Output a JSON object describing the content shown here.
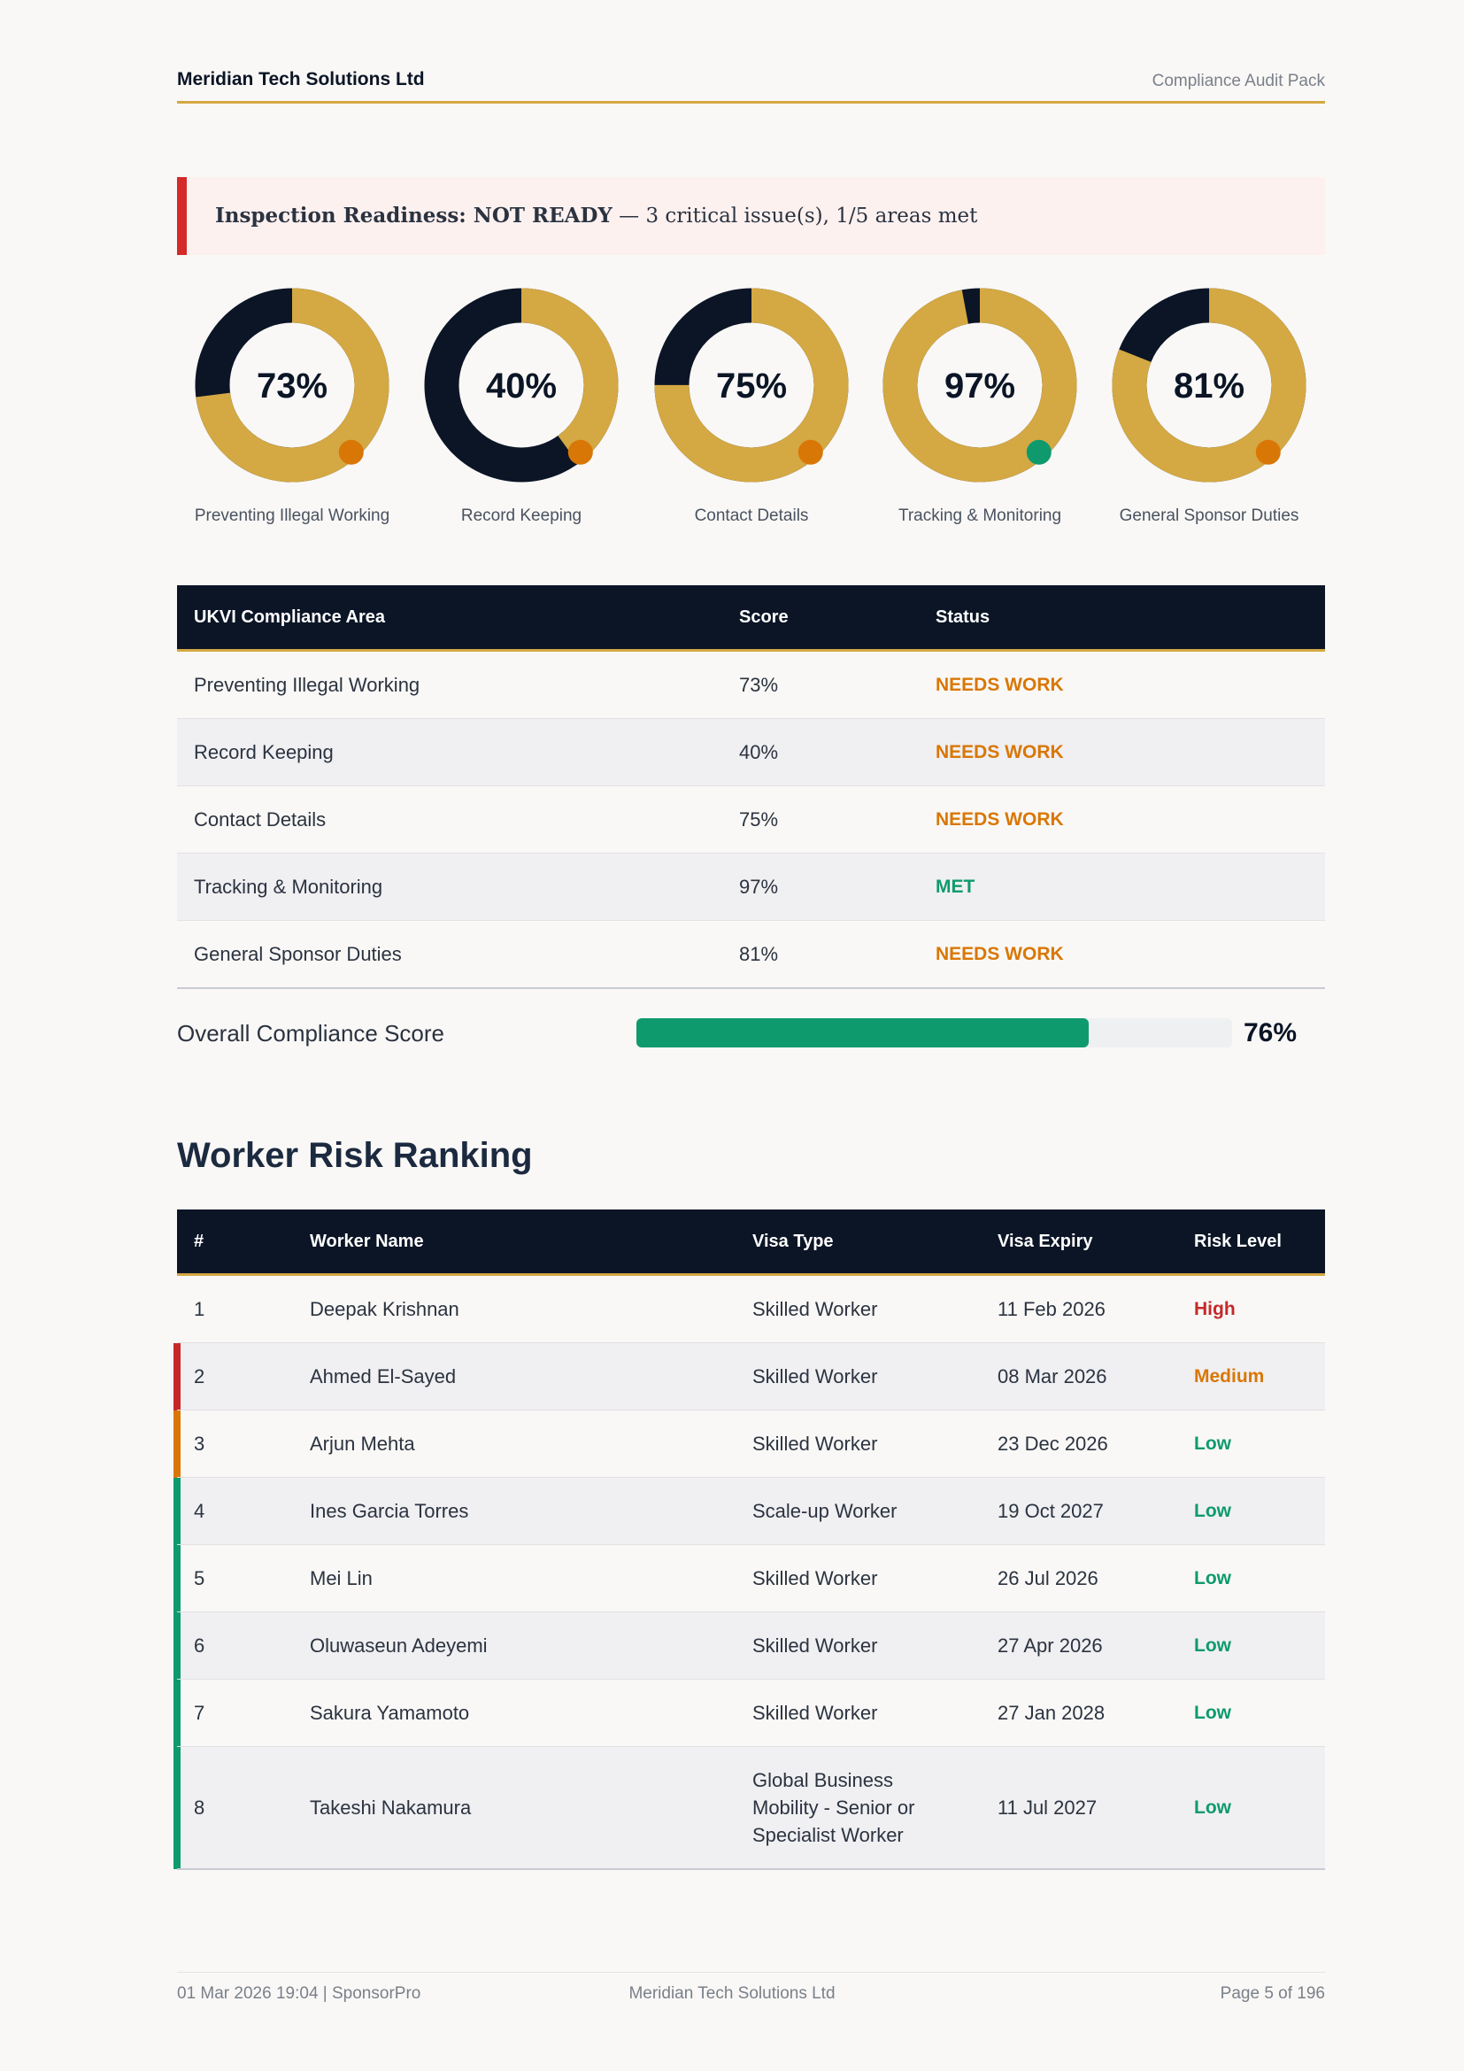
{
  "header": {
    "company": "Meridian Tech Solutions Ltd",
    "doc": "Compliance Audit Pack"
  },
  "banner": {
    "headline": "Inspection Readiness: NOT READY",
    "detail": "— 3 critical issue(s), 1/5 areas met",
    "color": "#d42a2a"
  },
  "areas": {
    "columns": [
      "UKVI Compliance Area",
      "Score",
      "Status"
    ],
    "rows": [
      {
        "name": "Preventing Illegal Working",
        "score": 73,
        "score_label": "73%",
        "status": "NEEDS WORK",
        "color": "#d97706"
      },
      {
        "name": "Record Keeping",
        "score": 40,
        "score_label": "40%",
        "status": "NEEDS WORK",
        "color": "#d97706"
      },
      {
        "name": "Contact Details",
        "score": 75,
        "score_label": "75%",
        "status": "NEEDS WORK",
        "color": "#d97706"
      },
      {
        "name": "Tracking & Monitoring",
        "score": 97,
        "score_label": "97%",
        "status": "MET",
        "color": "#0f9a6e"
      },
      {
        "name": "General Sponsor Duties",
        "score": 81,
        "score_label": "81%",
        "status": "NEEDS WORK",
        "color": "#d97706"
      }
    ]
  },
  "overall": {
    "label": "Overall Compliance Score",
    "value": 76,
    "value_label": "76%",
    "color": "#0f9a6e"
  },
  "workers": {
    "title": "Worker Risk Ranking",
    "columns": [
      "#",
      "Worker Name",
      "Visa Type",
      "Visa Expiry",
      "Risk Level"
    ],
    "rows": [
      [
        "1",
        "Deepak Krishnan",
        "Skilled Worker",
        "11 Feb 2026",
        "High"
      ],
      [
        "2",
        "Ahmed El-Sayed",
        "Skilled Worker",
        "08 Mar 2026",
        "Medium"
      ],
      [
        "3",
        "Arjun Mehta",
        "Skilled Worker",
        "23 Dec 2026",
        "Low"
      ],
      [
        "4",
        "Ines Garcia Torres",
        "Scale-up Worker",
        "19 Oct 2027",
        "Low"
      ],
      [
        "5",
        "Mei Lin",
        "Skilled Worker",
        "26 Jul 2026",
        "Low"
      ],
      [
        "6",
        "Oluwaseun Adeyemi",
        "Skilled Worker",
        "27 Apr 2026",
        "Low"
      ],
      [
        "7",
        "Sakura Yamamoto",
        "Skilled Worker",
        "27 Jan 2028",
        "Low"
      ],
      [
        "8",
        "Takeshi Nakamura",
        "Global Business Mobility - Senior or Specialist Worker",
        "11 Jul 2027",
        "Low"
      ]
    ],
    "risk_colors": [
      "#c62828",
      "#d97706",
      "#0f9a6e",
      "#0f9a6e",
      "#0f9a6e",
      "#0f9a6e",
      "#0f9a6e",
      "#0f9a6e"
    ]
  },
  "footer": {
    "left": "01 Mar 2026 19:04 | SponsorPro",
    "center": "Meridian Tech Solutions Ltd",
    "right": "Page 5 of 196"
  }
}
